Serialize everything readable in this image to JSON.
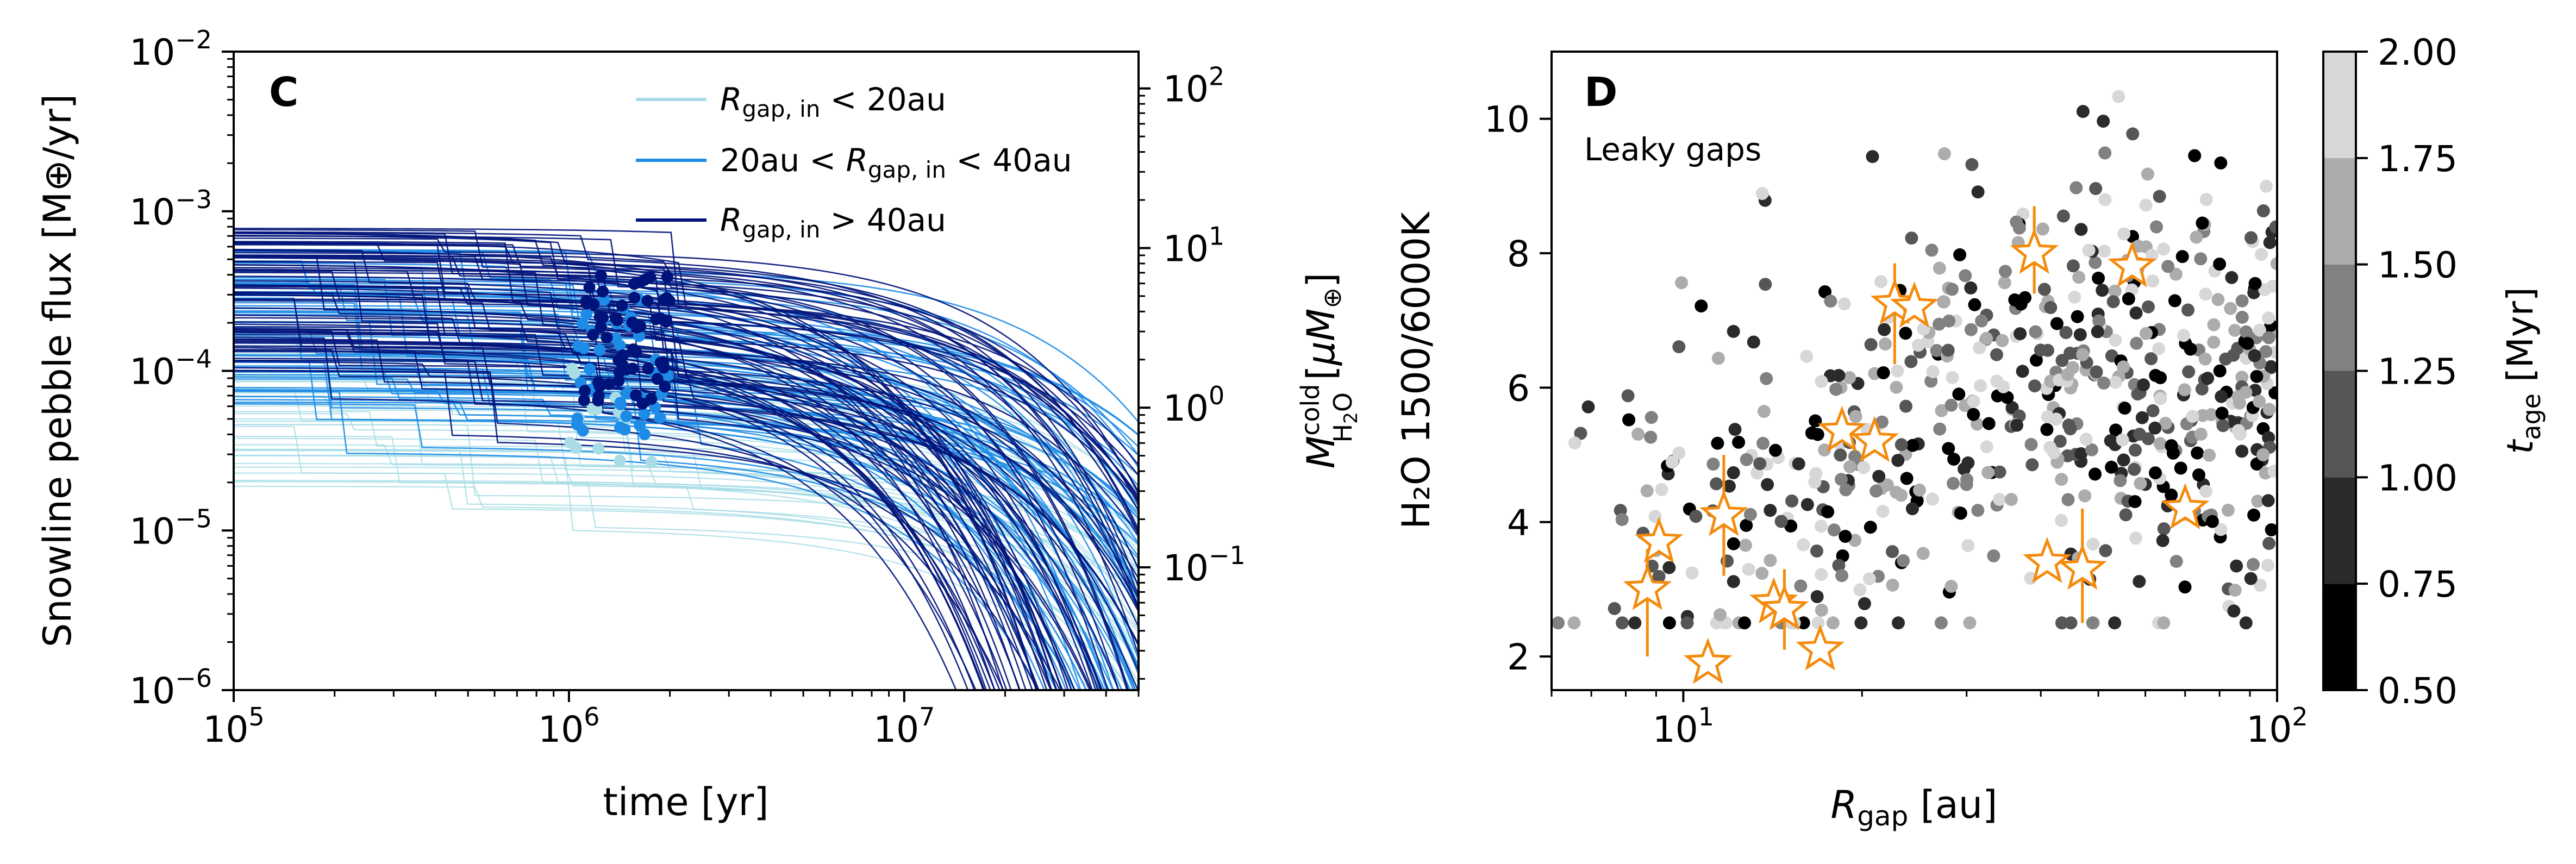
{
  "chart_data": [
    {
      "panel": "C",
      "type": "line",
      "xscale": "log",
      "yscale": "log",
      "xlim": [
        100000,
        50000000
      ],
      "ylim": [
        1e-06,
        0.01
      ],
      "xlabel": "time [yr]",
      "ylabel": "Snowline pebble flux [M⊕/yr]",
      "y2label": "M_H2O^cold [μM⊕]",
      "y2lim": [
        0.017,
        170
      ],
      "y2ticks": [
        {
          "value": 0.1,
          "mantissa": "10",
          "exponent": "−1"
        },
        {
          "value": 1,
          "mantissa": "10",
          "exponent": "0"
        },
        {
          "value": 10,
          "mantissa": "10",
          "exponent": "1"
        },
        {
          "value": 100,
          "mantissa": "10",
          "exponent": "2"
        }
      ],
      "xticks": [
        {
          "value": 100000,
          "mantissa": "10",
          "exponent": "5"
        },
        {
          "value": 1000000,
          "mantissa": "10",
          "exponent": "6"
        },
        {
          "value": 10000000,
          "mantissa": "10",
          "exponent": "7"
        }
      ],
      "yticks": [
        {
          "value": 1e-06,
          "mantissa": "10",
          "exponent": "−6"
        },
        {
          "value": 1e-05,
          "mantissa": "10",
          "exponent": "−5"
        },
        {
          "value": 0.0001,
          "mantissa": "10",
          "exponent": "−4"
        },
        {
          "value": 0.001,
          "mantissa": "10",
          "exponent": "−3"
        },
        {
          "value": 0.01,
          "mantissa": "10",
          "exponent": "−2"
        }
      ],
      "legend_position": "top-right",
      "series": [
        {
          "name": "R_gap,in < 20au",
          "legend_main": "R",
          "legend_sub": "gap, in",
          "legend_rest": " < 20au",
          "color": "#a8dde6",
          "n_tracks": 40,
          "flux_range": [
            1.5e-05,
            0.00022
          ],
          "t_decay_range": [
            15000000,
            40000000
          ],
          "snapshot_time_range": [
            1000000,
            1900000
          ],
          "snapshot_flux_range": [
            2e-05,
            0.00012
          ]
        },
        {
          "name": "20au < R_gap,in < 40au",
          "legend_main": "R",
          "legend_sub": "gap, in",
          "legend_pre": "20au < ",
          "legend_rest": " < 40au",
          "color": "#1e8ce6",
          "n_tracks": 60,
          "flux_range": [
            6e-05,
            0.0006
          ],
          "t_decay_range": [
            7000000,
            35000000
          ],
          "snapshot_time_range": [
            1050000,
            2000000
          ],
          "snapshot_flux_range": [
            4e-05,
            0.00035
          ]
        },
        {
          "name": "R_gap,in > 40au",
          "legend_main": "R",
          "legend_sub": "gap, in",
          "legend_rest": " > 40au",
          "color": "#00137a",
          "n_tracks": 80,
          "flux_range": [
            0.0001,
            0.0008
          ],
          "t_decay_range": [
            4000000,
            25000000
          ],
          "snapshot_time_range": [
            1100000,
            2000000
          ],
          "snapshot_flux_range": [
            6e-05,
            0.00042
          ]
        }
      ],
      "panel_label": "C"
    },
    {
      "panel": "D",
      "type": "scatter",
      "xscale": "log",
      "xlim": [
        6,
        100
      ],
      "ylim": [
        1.5,
        11
      ],
      "xlabel_main": "R",
      "xlabel_sub": "gap",
      "xlabel_rest": " [au]",
      "ylabel": "H₂O 1500/6000K",
      "annotation": "Leaky gaps",
      "panel_label": "D",
      "xticks": [
        {
          "value": 10,
          "mantissa": "10",
          "exponent": "1"
        },
        {
          "value": 100,
          "mantissa": "10",
          "exponent": "2"
        }
      ],
      "yticks": [
        {
          "value": 2,
          "label": "2"
        },
        {
          "value": 4,
          "label": "4"
        },
        {
          "value": 6,
          "label": "6"
        },
        {
          "value": 8,
          "label": "8"
        },
        {
          "value": 10,
          "label": "10"
        }
      ],
      "model_points": {
        "n": 620,
        "x_range": [
          6,
          100
        ],
        "y_range": [
          2.5,
          10.8
        ],
        "color_by": "t_age [Myr]"
      },
      "observed_stars": [
        {
          "x": 8.7,
          "y": 3.0,
          "yerr_low": 1.0,
          "yerr_high": 0.6
        },
        {
          "x": 9.1,
          "y": 3.7,
          "yerr_low": 0.0,
          "yerr_high": 0.0
        },
        {
          "x": 11.0,
          "y": 1.9,
          "yerr_low": 0.0,
          "yerr_high": 0.0
        },
        {
          "x": 11.7,
          "y": 4.1,
          "yerr_low": 0.9,
          "yerr_high": 0.9
        },
        {
          "x": 14.2,
          "y": 2.8,
          "yerr_low": 0.0,
          "yerr_high": 0.0
        },
        {
          "x": 14.8,
          "y": 2.7,
          "yerr_low": 0.6,
          "yerr_high": 0.6
        },
        {
          "x": 17.0,
          "y": 2.1,
          "yerr_low": 0.0,
          "yerr_high": 0.0
        },
        {
          "x": 18.5,
          "y": 5.35,
          "yerr_low": 0.0,
          "yerr_high": 0.0
        },
        {
          "x": 21.0,
          "y": 5.2,
          "yerr_low": 0.0,
          "yerr_high": 0.0
        },
        {
          "x": 22.7,
          "y": 7.25,
          "yerr_low": 0.9,
          "yerr_high": 0.6
        },
        {
          "x": 24.5,
          "y": 7.2,
          "yerr_low": 0.0,
          "yerr_high": 0.0
        },
        {
          "x": 39.0,
          "y": 8.0,
          "yerr_low": 0.6,
          "yerr_high": 0.7
        },
        {
          "x": 41.0,
          "y": 3.4,
          "yerr_low": 0.0,
          "yerr_high": 0.0
        },
        {
          "x": 47.0,
          "y": 3.3,
          "yerr_low": 0.8,
          "yerr_high": 0.9
        },
        {
          "x": 57.0,
          "y": 7.8,
          "yerr_low": 0.0,
          "yerr_high": 0.0
        },
        {
          "x": 70.0,
          "y": 4.2,
          "yerr_low": 0.0,
          "yerr_high": 0.0
        }
      ],
      "star_color": "#f58a0b",
      "colorbar": {
        "label_main": "t",
        "label_sub": "age",
        "label_rest": " [Myr]",
        "min": 0.5,
        "max": 2.0,
        "ticks": [
          {
            "value": 0.5,
            "label": "0.50"
          },
          {
            "value": 0.75,
            "label": "0.75"
          },
          {
            "value": 1.0,
            "label": "1.00"
          },
          {
            "value": 1.25,
            "label": "1.25"
          },
          {
            "value": 1.5,
            "label": "1.50"
          },
          {
            "value": 1.75,
            "label": "1.75"
          },
          {
            "value": 2.0,
            "label": "2.00"
          }
        ],
        "bins": [
          {
            "from": 0.5,
            "to": 0.75,
            "color": "#000000"
          },
          {
            "from": 0.75,
            "to": 1.0,
            "color": "#2b2b2b"
          },
          {
            "from": 1.0,
            "to": 1.25,
            "color": "#565656"
          },
          {
            "from": 1.25,
            "to": 1.5,
            "color": "#818181"
          },
          {
            "from": 1.5,
            "to": 1.75,
            "color": "#acacac"
          },
          {
            "from": 1.75,
            "to": 2.0,
            "color": "#d7d7d7"
          }
        ]
      }
    }
  ]
}
